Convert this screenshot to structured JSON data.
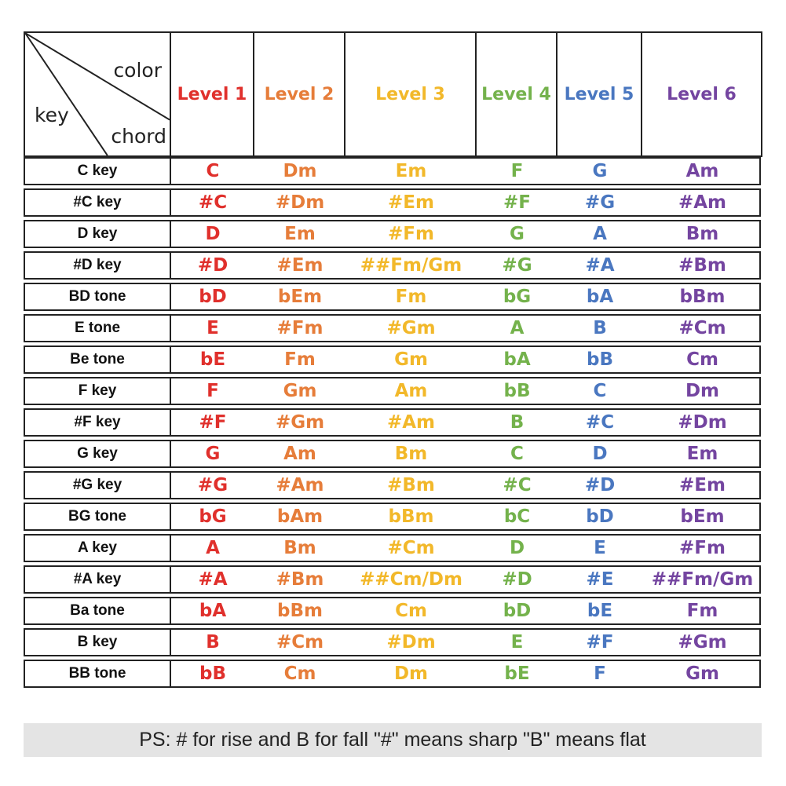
{
  "header": {
    "corner": {
      "color_label": "color",
      "key_label": "key",
      "chord_label": "chord"
    },
    "levels": [
      "Level 1",
      "Level 2",
      "Level 3",
      "Level 4",
      "Level 5",
      "Level 6"
    ]
  },
  "level_colors": [
    "#e0302c",
    "#e67d3a",
    "#f2b82a",
    "#74b24c",
    "#4a77c0",
    "#7445a0"
  ],
  "rows": [
    {
      "key": "C key",
      "chords": [
        "C",
        "Dm",
        "Em",
        "F",
        "G",
        "Am"
      ]
    },
    {
      "key": "#C key",
      "chords": [
        "#C",
        "#Dm",
        "#Em",
        "#F",
        "#G",
        "#Am"
      ]
    },
    {
      "key": "D key",
      "chords": [
        "D",
        "Em",
        "#Fm",
        "G",
        "A",
        "Bm"
      ]
    },
    {
      "key": "#D key",
      "chords": [
        "#D",
        "#Em",
        "##Fm/Gm",
        "#G",
        "#A",
        "#Bm"
      ]
    },
    {
      "key": "BD tone",
      "chords": [
        "bD",
        "bEm",
        "Fm",
        "bG",
        "bA",
        "bBm"
      ]
    },
    {
      "key": "E tone",
      "chords": [
        "E",
        "#Fm",
        "#Gm",
        "A",
        "B",
        "#Cm"
      ]
    },
    {
      "key": "Be tone",
      "chords": [
        "bE",
        "Fm",
        "Gm",
        "bA",
        "bB",
        "Cm"
      ]
    },
    {
      "key": "F key",
      "chords": [
        "F",
        "Gm",
        "Am",
        "bB",
        "C",
        "Dm"
      ]
    },
    {
      "key": "#F key",
      "chords": [
        "#F",
        "#Gm",
        "#Am",
        "B",
        "#C",
        "#Dm"
      ]
    },
    {
      "key": "G key",
      "chords": [
        "G",
        "Am",
        "Bm",
        "C",
        "D",
        "Em"
      ]
    },
    {
      "key": "#G key",
      "chords": [
        "#G",
        "#Am",
        "#Bm",
        "#C",
        "#D",
        "#Em"
      ]
    },
    {
      "key": "BG tone",
      "chords": [
        "bG",
        "bAm",
        "bBm",
        "bC",
        "bD",
        "bEm"
      ]
    },
    {
      "key": "A key",
      "chords": [
        "A",
        "Bm",
        "#Cm",
        "D",
        "E",
        "#Fm"
      ]
    },
    {
      "key": "#A key",
      "chords": [
        "#A",
        "#Bm",
        "##Cm/Dm",
        "#D",
        "#E",
        "##Fm/Gm"
      ]
    },
    {
      "key": "Ba tone",
      "chords": [
        "bA",
        "bBm",
        "Cm",
        "bD",
        "bE",
        "Fm"
      ]
    },
    {
      "key": "B key",
      "chords": [
        "B",
        "#Cm",
        "#Dm",
        "E",
        "#F",
        "#Gm"
      ]
    },
    {
      "key": "BB tone",
      "chords": [
        "bB",
        "Cm",
        "Dm",
        "bE",
        "F",
        "Gm"
      ]
    }
  ],
  "footer": {
    "note": "PS: # for rise and B for fall \"#\" means sharp \"B\" means flat"
  }
}
